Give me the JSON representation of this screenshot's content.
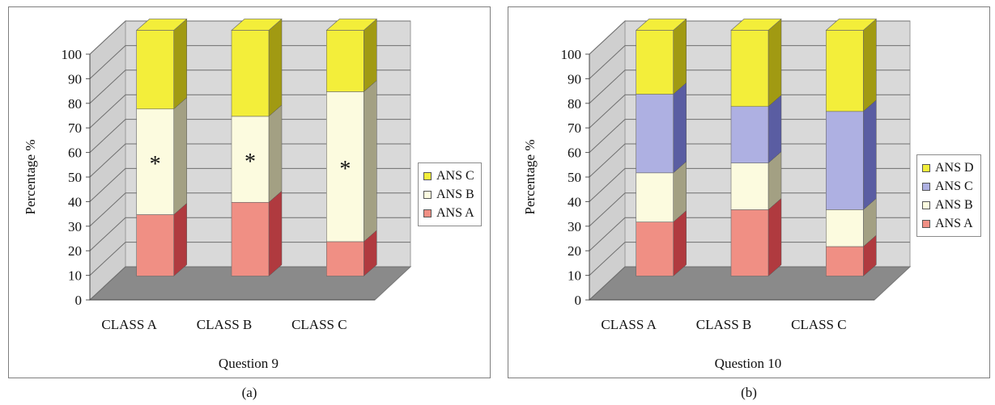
{
  "chart_data": [
    {
      "type": "bar",
      "stacked": true,
      "three_d": true,
      "title": "",
      "xlabel": "Question 9",
      "ylabel": "Percentage %",
      "ylim": [
        0,
        100
      ],
      "yticks": [
        "0",
        "10",
        "20",
        "30",
        "40",
        "50",
        "60",
        "70",
        "80",
        "90",
        "100"
      ],
      "categories": [
        "CLASS A",
        "CLASS B",
        "CLASS C"
      ],
      "series": [
        {
          "name": "ANS A",
          "color": "#f08f84",
          "values": [
            25,
            30,
            14
          ]
        },
        {
          "name": "ANS B",
          "color": "#fcfbdf",
          "values": [
            43,
            35,
            61
          ]
        },
        {
          "name": "ANS C",
          "color": "#f3ee3a",
          "values": [
            32,
            35,
            25
          ]
        }
      ],
      "annotations": [
        "*",
        "*",
        "*"
      ],
      "legend": [
        "ANS C",
        "ANS B",
        "ANS A"
      ],
      "legend_position": "right",
      "grid": true,
      "caption": "(a)"
    },
    {
      "type": "bar",
      "stacked": true,
      "three_d": true,
      "title": "",
      "xlabel": "Question 10",
      "ylabel": "Percentage %",
      "ylim": [
        0,
        100
      ],
      "yticks": [
        "0",
        "10",
        "20",
        "30",
        "40",
        "50",
        "60",
        "70",
        "80",
        "90",
        "100"
      ],
      "categories": [
        "CLASS A",
        "CLASS B",
        "CLASS C"
      ],
      "series": [
        {
          "name": "ANS A",
          "color": "#f08f84",
          "values": [
            22,
            27,
            12
          ]
        },
        {
          "name": "ANS B",
          "color": "#fcfbdf",
          "values": [
            20,
            19,
            15
          ]
        },
        {
          "name": "ANS C",
          "color": "#aeb0e2",
          "values": [
            32,
            23,
            40
          ]
        },
        {
          "name": "ANS D",
          "color": "#f3ee3a",
          "values": [
            26,
            31,
            33
          ]
        }
      ],
      "annotations": [],
      "legend": [
        "ANS D",
        "ANS C",
        "ANS B",
        "ANS A"
      ],
      "legend_position": "right",
      "grid": true,
      "caption": "(b)"
    }
  ],
  "side_colors": {
    "#f08f84": "#b03a3f",
    "#fcfbdf": "#a3a083",
    "#f3ee3a": "#a19a12",
    "#aeb0e2": "#5a5da2"
  },
  "wall_color": "#d9d9d9",
  "floor_color": "#8a8a8a"
}
